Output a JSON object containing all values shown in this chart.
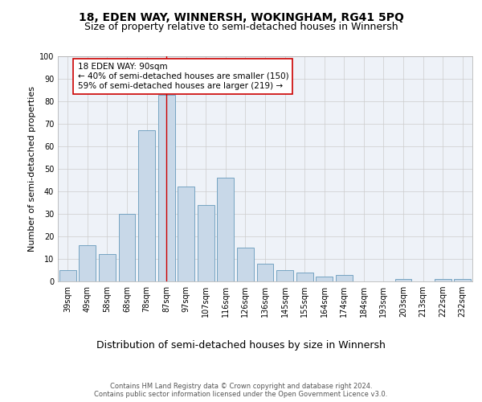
{
  "title": "18, EDEN WAY, WINNERSH, WOKINGHAM, RG41 5PQ",
  "subtitle": "Size of property relative to semi-detached houses in Winnersh",
  "xlabel": "Distribution of semi-detached houses by size in Winnersh",
  "ylabel": "Number of semi-detached properties",
  "categories": [
    "39sqm",
    "49sqm",
    "58sqm",
    "68sqm",
    "78sqm",
    "87sqm",
    "97sqm",
    "107sqm",
    "116sqm",
    "126sqm",
    "136sqm",
    "145sqm",
    "155sqm",
    "164sqm",
    "174sqm",
    "184sqm",
    "193sqm",
    "203sqm",
    "213sqm",
    "222sqm",
    "232sqm"
  ],
  "values": [
    5,
    16,
    12,
    30,
    67,
    83,
    42,
    34,
    46,
    15,
    8,
    5,
    4,
    2,
    3,
    0,
    0,
    1,
    0,
    1,
    1
  ],
  "bar_color": "#c8d8e8",
  "bar_edge_color": "#6699bb",
  "vline_color": "#cc0000",
  "vline_index": 5,
  "annotation_text": "18 EDEN WAY: 90sqm\n← 40% of semi-detached houses are smaller (150)\n59% of semi-detached houses are larger (219) →",
  "annotation_box_color": "#ffffff",
  "annotation_box_edge": "#cc0000",
  "ylim": [
    0,
    100
  ],
  "yticks": [
    0,
    10,
    20,
    30,
    40,
    50,
    60,
    70,
    80,
    90,
    100
  ],
  "footer": "Contains HM Land Registry data © Crown copyright and database right 2024.\nContains public sector information licensed under the Open Government Licence v3.0.",
  "bg_color": "#eef2f8",
  "grid_color": "#cccccc",
  "title_fontsize": 10,
  "subtitle_fontsize": 9,
  "tick_fontsize": 7,
  "ylabel_fontsize": 8,
  "xlabel_fontsize": 9,
  "footer_fontsize": 6,
  "annotation_fontsize": 7.5
}
